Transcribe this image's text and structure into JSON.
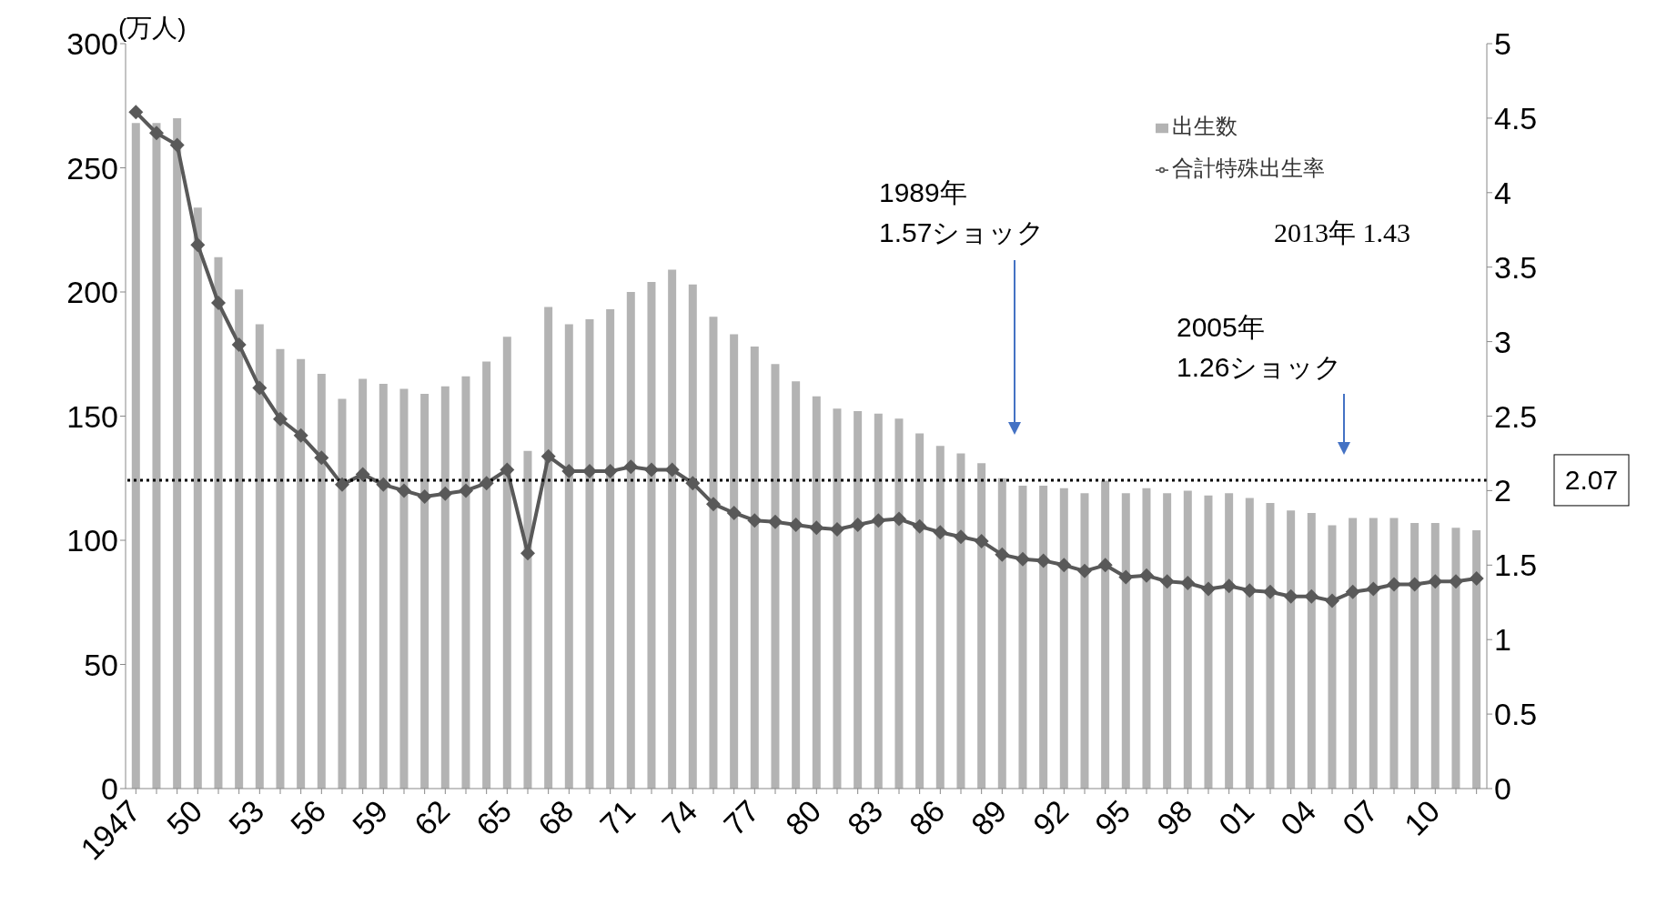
{
  "chart_data": {
    "type": "bar",
    "ylabel": "(万人)",
    "categories": [
      "1947",
      null,
      null,
      "50",
      null,
      null,
      "53",
      null,
      null,
      "56",
      null,
      null,
      "59",
      null,
      null,
      "62",
      null,
      null,
      "65",
      null,
      null,
      "68",
      null,
      null,
      "71",
      null,
      null,
      "74",
      null,
      null,
      "77",
      null,
      null,
      "80",
      null,
      null,
      "83",
      null,
      null,
      "86",
      null,
      null,
      "89",
      null,
      null,
      "92",
      null,
      null,
      "95",
      null,
      null,
      "98",
      null,
      null,
      "01",
      null,
      null,
      "04",
      null,
      null,
      "07",
      null,
      null,
      "10",
      null,
      null
    ],
    "series": [
      {
        "name": "出生数",
        "color": "#b3b3b3",
        "values": [
          268,
          268,
          270,
          234,
          214,
          201,
          187,
          177,
          173,
          167,
          157,
          165,
          163,
          161,
          159,
          162,
          166,
          172,
          182,
          136,
          194,
          187,
          189,
          193,
          200,
          204,
          209,
          203,
          190,
          183,
          178,
          171,
          164,
          158,
          153,
          152,
          151,
          149,
          143,
          138,
          135,
          131,
          125,
          122,
          122,
          121,
          119,
          124,
          119,
          121,
          119,
          120,
          118,
          119,
          117,
          115,
          112,
          111,
          106,
          109,
          109,
          109,
          107,
          107,
          105,
          104
        ]
      },
      {
        "name": "合計特殊出生率",
        "type": "line",
        "axis": "y2",
        "color": "#595959",
        "values": [
          4.54,
          4.4,
          4.32,
          3.65,
          3.26,
          2.98,
          2.69,
          2.48,
          2.37,
          2.22,
          2.04,
          2.11,
          2.04,
          2.0,
          1.96,
          1.98,
          2.0,
          2.05,
          2.14,
          1.58,
          2.23,
          2.13,
          2.13,
          2.13,
          2.16,
          2.14,
          2.14,
          2.05,
          1.91,
          1.85,
          1.8,
          1.79,
          1.77,
          1.75,
          1.74,
          1.77,
          1.8,
          1.81,
          1.76,
          1.72,
          1.69,
          1.66,
          1.57,
          1.54,
          1.53,
          1.5,
          1.46,
          1.5,
          1.42,
          1.43,
          1.39,
          1.38,
          1.34,
          1.36,
          1.33,
          1.32,
          1.29,
          1.29,
          1.26,
          1.32,
          1.34,
          1.37,
          1.37,
          1.39,
          1.39,
          1.41
        ]
      }
    ],
    "ylim": [
      0,
      300
    ],
    "yticks": [
      0,
      50,
      100,
      150,
      200,
      250,
      300
    ],
    "y2lim": [
      0,
      5
    ],
    "y2ticks": [
      0,
      0.5,
      1,
      1.5,
      2,
      2.5,
      3,
      3.5,
      4,
      4.5,
      5
    ],
    "ref_lines": [
      {
        "axis": "y2",
        "value": 2.07,
        "label": "2.07",
        "line_style": "dotted",
        "color": "#000000"
      }
    ],
    "annotations": [
      "1989年\n1.57ショック",
      "2005年\n1.26ショック",
      "2013年 1.43"
    ],
    "legend": "top right",
    "marker": "diamond",
    "grid": false
  }
}
